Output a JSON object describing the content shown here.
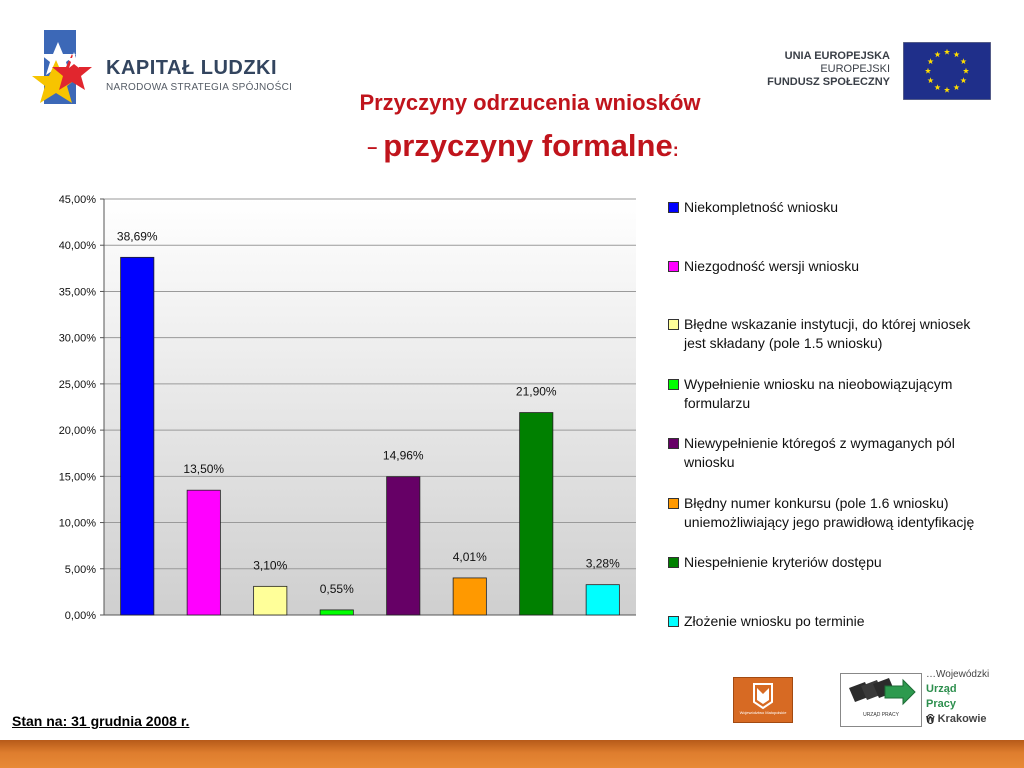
{
  "header": {
    "logo_left": {
      "title": "KAPITAŁ LUDZKI",
      "subtitle": "NARODOWA STRATEGIA SPÓJNOŚCI",
      "icon": "star-logo-icon"
    },
    "logo_right": {
      "line1": "UNIA EUROPEJSKA",
      "line2": "EUROPEJSKI",
      "line3": "FUNDUSZ SPOŁECZNY",
      "icon": "eu-flag-icon"
    }
  },
  "title": {
    "line1": "Przyczyny odrzucenia wniosków",
    "line2_prefix": "–",
    "line2": "przyczyny formalne",
    "line2_suffix": ":"
  },
  "chart_data": {
    "type": "bar",
    "categories": [
      "Niekompletność wniosku",
      "Niezgodność wersji wniosku",
      "Błędne wskazanie instytucji, do której wniosek jest składany (pole 1.5 wniosku)",
      "Wypełnienie wniosku na nieobowiązującym formularzu",
      "Niewypełnienie któregoś z wymaganych pól wniosku",
      "Błędny numer konkursu (pole 1.6 wniosku) uniemożliwiający jego prawidłową identyfikację",
      "Niespełnienie kryteriów dostępu",
      "Złożenie wniosku po terminie"
    ],
    "values": [
      38.69,
      13.5,
      3.1,
      0.55,
      14.96,
      4.01,
      21.9,
      3.28
    ],
    "data_labels": [
      "38,69%",
      "13,50%",
      "3,10%",
      "0,55%",
      "14,96%",
      "4,01%",
      "21,90%",
      "3,28%"
    ],
    "colors": [
      "#0000ff",
      "#ff00ff",
      "#ffff99",
      "#00ff00",
      "#660066",
      "#ff9900",
      "#008000",
      "#00ffff"
    ],
    "y_ticks": [
      "0,00%",
      "5,00%",
      "10,00%",
      "15,00%",
      "20,00%",
      "25,00%",
      "30,00%",
      "35,00%",
      "40,00%",
      "45,00%"
    ],
    "ylim": [
      0,
      45
    ],
    "grid": true,
    "legend_position": "right",
    "title": "",
    "xlabel": "",
    "ylabel": ""
  },
  "footer": {
    "date_note": "Stan na:  31 grudnia 2008 r.",
    "logo_mal": "Województwo Małopolskie",
    "logo_wup_caption": "URZĄD PRACY",
    "wup_line1": "…Wojewódzki",
    "wup_line2": "Urząd",
    "wup_line3": "Pracy",
    "wup_line4": "w Krakowie",
    "page_number": "6"
  }
}
